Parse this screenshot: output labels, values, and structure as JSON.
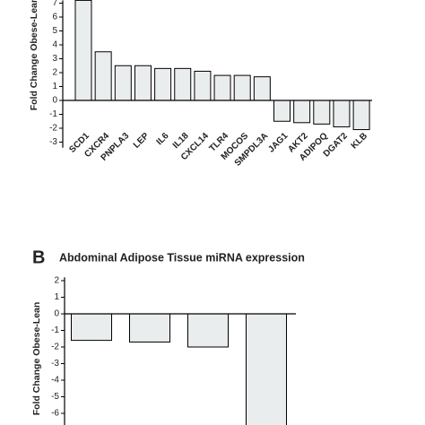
{
  "chart_data": [
    {
      "type": "bar",
      "y_label": "Fold Change Obese-Lean",
      "categories": [
        "SCD1",
        "CXCR4",
        "PNPLA3",
        "LEP",
        "IL6",
        "IL18",
        "CXCL14",
        "TLR4",
        "MOCOS",
        "SMPDL3A",
        "JAG1",
        "AKT2",
        "ADIPOQ",
        "DGAT2",
        "KLB"
      ],
      "values": [
        7.2,
        3.5,
        2.5,
        2.5,
        2.3,
        2.3,
        2.1,
        1.8,
        1.8,
        1.7,
        -1.5,
        -1.6,
        -1.7,
        -1.9,
        -2.1
      ],
      "color": "#e9eded",
      "ylim": [
        -3.4,
        7.2
      ],
      "yticks": [
        -3,
        -2,
        -1,
        0,
        1,
        2,
        3,
        4,
        5,
        6,
        7
      ]
    },
    {
      "type": "bar",
      "panel": "B",
      "title": "Abdominal Adipose Tissue miRNA expression",
      "y_label": "Fold Change Obese-Lean",
      "categories": [
        null,
        null,
        null,
        null
      ],
      "values": [
        -1.6,
        -1.7,
        -2.0,
        -6.9
      ],
      "color": "#e9eded",
      "ylim": [
        -6.9,
        2.2
      ],
      "yticks": [
        -6,
        -5,
        -4,
        -3,
        -2,
        -1,
        0,
        1,
        2
      ]
    }
  ]
}
